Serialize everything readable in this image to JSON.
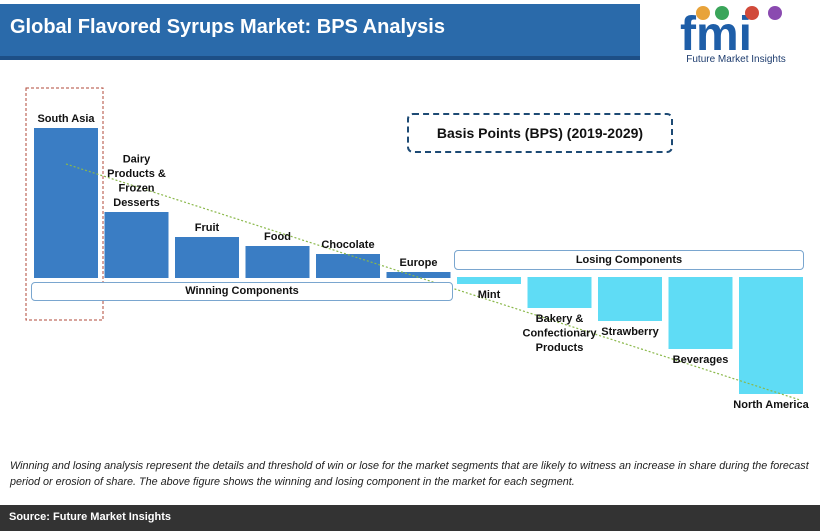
{
  "header": {
    "title": "Global Flavored Syrups Market: BPS Analysis"
  },
  "logo": {
    "letters": "fmi",
    "subtitle": "Future Market Insights"
  },
  "chart_data": {
    "type": "bar",
    "title": "Basis Points (BPS) (2019-2029)",
    "categories": [
      "South Asia",
      "Dairy Products & Frozen Desserts",
      "Fruit",
      "Food",
      "Chocolate",
      "Europe",
      "Mint",
      "Bakery & Confectionary Products",
      "Strawberry",
      "Beverages",
      "North America"
    ],
    "values": [
      150,
      66,
      41,
      32,
      24,
      6,
      -7,
      -31,
      -44,
      -72,
      -117
    ],
    "groups": {
      "winning": "Winning Components",
      "losing": "Losing Components"
    },
    "colors": {
      "winning": "#3a7dc4",
      "losing": "#5fdcf5"
    },
    "trendline": true,
    "highlight": "South Asia"
  },
  "note": "Winning and losing analysis represent the details and threshold of win or lose for the market segments that are likely to witness an increase in share during the forecast period or erosion of share. The above figure shows the winning and losing component in the market for each segment.",
  "footer": {
    "source": "Source: Future Market Insights"
  }
}
